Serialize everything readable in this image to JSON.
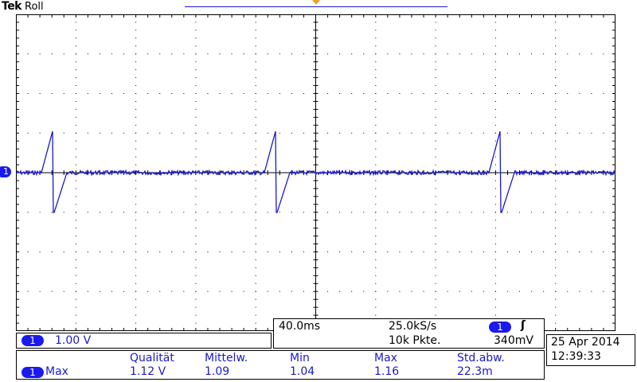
{
  "brand": "Tek",
  "mode": "Roll",
  "channel_marker": "1",
  "channel_box": {
    "channel": "1",
    "scale": "1.00 V"
  },
  "timebase": {
    "time_div": "40.0ms",
    "sample_rate": "25.0kS/s",
    "points": "10k Pkte.",
    "trigger_channel": "1",
    "trigger_slope_icon": "rising-edge-icon",
    "trigger_slope_symbol": "ʃ",
    "trigger_level": "340mV"
  },
  "datetime": {
    "date": "25 Apr  2014",
    "time": "12:39:33"
  },
  "measurement": {
    "channel": "1",
    "type": "Max",
    "headers": [
      "Qualität",
      "Mittelw.",
      "Min",
      "Max",
      "Std.abw."
    ],
    "values": [
      "1.12 V",
      "1.09",
      "1.04",
      "1.16",
      "22.3m"
    ]
  },
  "colors": {
    "trace": "#1a1acc",
    "trigger_marker": "#f0a020",
    "grid": "#000000"
  }
}
